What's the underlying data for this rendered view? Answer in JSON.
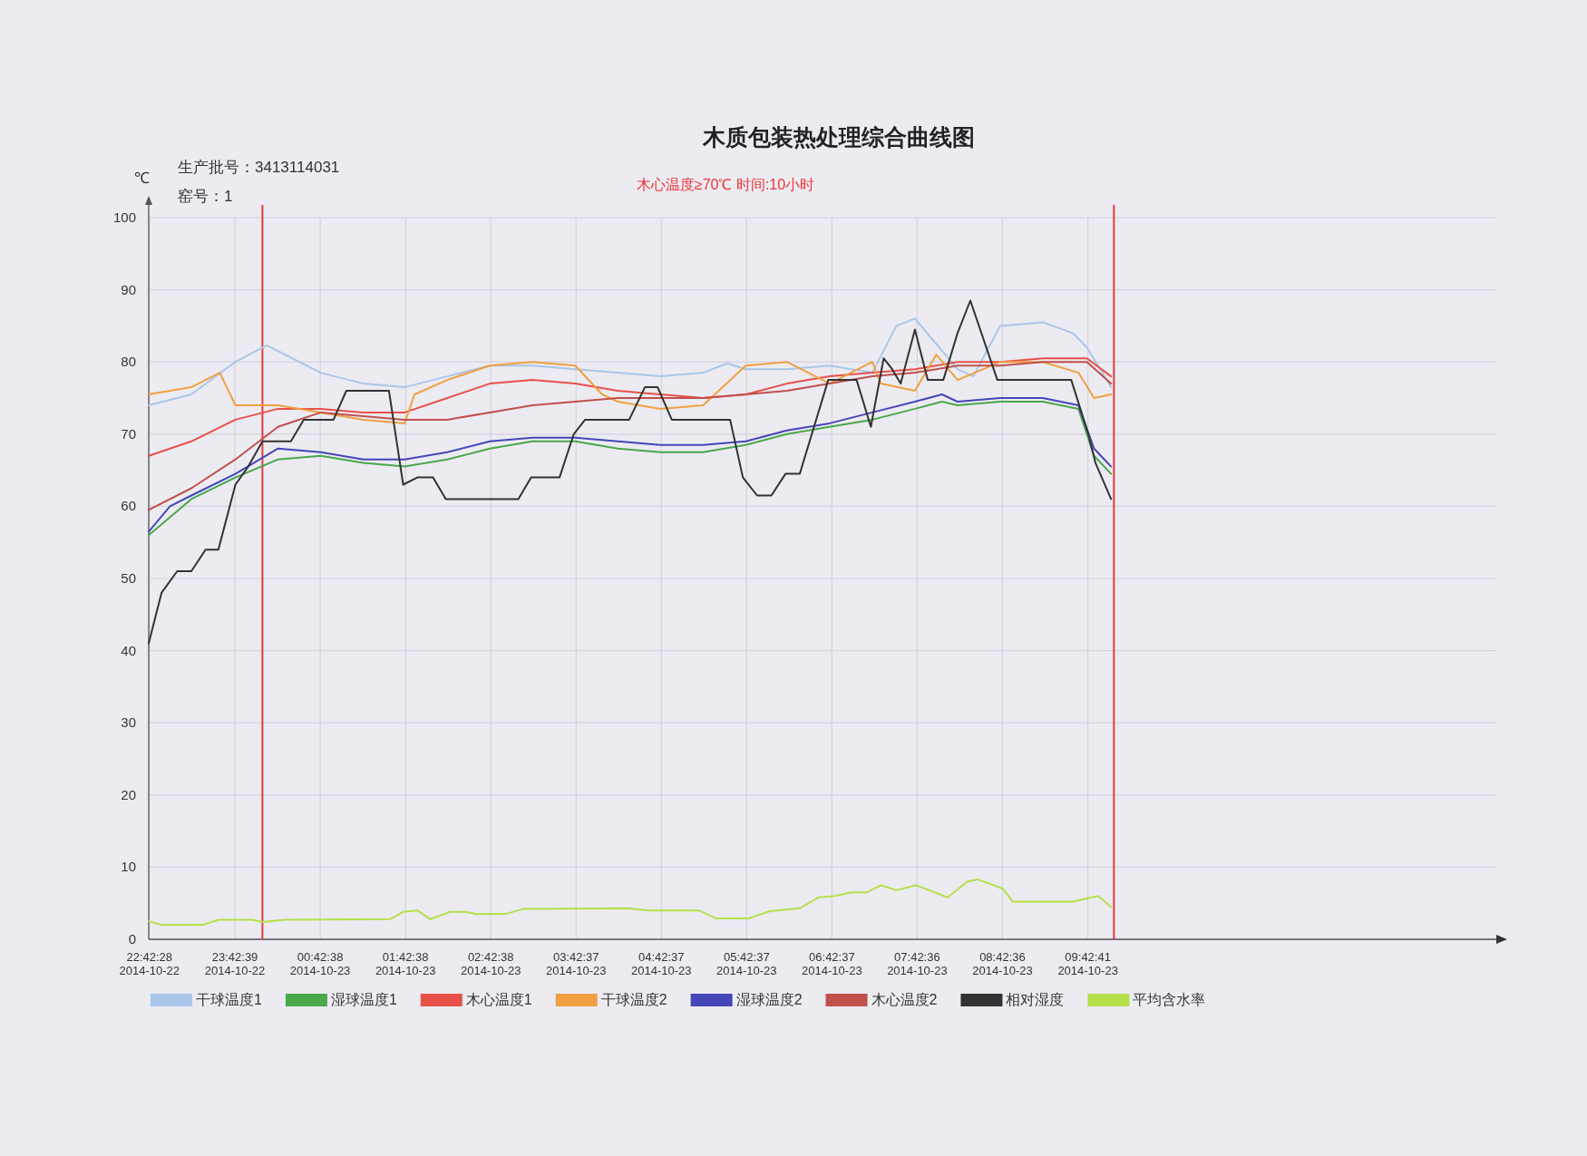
{
  "chart_data": {
    "type": "line",
    "title": "木质包装热处理综合曲线图",
    "subtitle": "木心温度≥70℃  时间:10小时",
    "ylabel": "℃",
    "annotations": [
      "生产批号：3413114031",
      "窑号：1"
    ],
    "xlim": [
      "2014-10-22T22:42",
      "2014-10-23T14:30"
    ],
    "ylim": [
      0,
      100
    ],
    "yticks": [
      0,
      10,
      20,
      30,
      40,
      50,
      60,
      70,
      80,
      90,
      100
    ],
    "xticks": [
      {
        "value": "2014-10-22T22:42:28",
        "label": "22:42:28 2014-10-22"
      },
      {
        "value": "2014-10-22T23:42:39",
        "label": "23:42:39 2014-10-22"
      },
      {
        "value": "2014-10-23T00:42:38",
        "label": "00:42:38 2014-10-23"
      },
      {
        "value": "2014-10-23T01:42:38",
        "label": "01:42:38 2014-10-23"
      },
      {
        "value": "2014-10-23T02:42:38",
        "label": "02:42:38 2014-10-23"
      },
      {
        "value": "2014-10-23T03:42:37",
        "label": "03:42:37 2014-10-23"
      },
      {
        "value": "2014-10-23T04:42:37",
        "label": "04:42:37 2014-10-23"
      },
      {
        "value": "2014-10-23T05:42:37",
        "label": "05:42:37 2014-10-23"
      },
      {
        "value": "2014-10-23T06:42:37",
        "label": "06:42:37 2014-10-23"
      },
      {
        "value": "2014-10-23T07:42:36",
        "label": "07:42:36 2014-10-23"
      },
      {
        "value": "2014-10-23T08:42:36",
        "label": "08:42:36 2014-10-23"
      },
      {
        "value": "2014-10-23T09:42:41",
        "label": "09:42:41 2014-10-23"
      }
    ],
    "grid": true,
    "legend": "bottom",
    "ref_lines": [
      {
        "axis": "x",
        "value": "2014-10-23T00:02",
        "color": "#e83c3c"
      },
      {
        "axis": "x",
        "value": "2014-10-23T10:01",
        "color": "#e83c3c"
      }
    ],
    "series": [
      {
        "name": "干球温度1",
        "color": "#a9c6ea",
        "x": [
          "2014-10-22T22:42",
          "2014-10-22T23:12",
          "2014-10-22T23:43",
          "2014-10-23T00:05",
          "2014-10-23T00:43",
          "2014-10-23T01:13",
          "2014-10-23T01:42",
          "2014-10-23T02:12",
          "2014-10-23T02:42",
          "2014-10-23T03:12",
          "2014-10-23T03:42",
          "2014-10-23T04:12",
          "2014-10-23T04:42",
          "2014-10-23T05:12",
          "2014-10-23T05:29",
          "2014-10-23T05:42",
          "2014-10-23T06:11",
          "2014-10-23T06:41",
          "2014-10-23T07:11",
          "2014-10-23T07:28",
          "2014-10-23T07:41",
          "2014-10-23T08:11",
          "2014-10-23T08:22",
          "2014-10-23T08:41",
          "2014-10-23T09:11",
          "2014-10-23T09:32",
          "2014-10-23T09:42",
          "2014-10-23T09:59"
        ],
        "values": [
          74,
          75.5,
          80,
          82.3,
          78.5,
          77,
          76.5,
          78,
          79.5,
          79.5,
          79,
          78.5,
          78,
          78.5,
          79.8,
          79,
          79,
          79.5,
          78.5,
          85,
          86,
          79,
          78,
          85,
          85.5,
          84,
          82,
          76.5
        ]
      },
      {
        "name": "湿球温度1",
        "color": "#4aa84a",
        "x": [
          "2014-10-22T22:42",
          "2014-10-22T23:12",
          "2014-10-22T23:43",
          "2014-10-23T00:13",
          "2014-10-23T00:43",
          "2014-10-23T01:13",
          "2014-10-23T01:42",
          "2014-10-23T02:12",
          "2014-10-23T02:42",
          "2014-10-23T03:12",
          "2014-10-23T03:42",
          "2014-10-23T04:12",
          "2014-10-23T04:42",
          "2014-10-23T05:12",
          "2014-10-23T05:42",
          "2014-10-23T06:11",
          "2014-10-23T06:41",
          "2014-10-23T07:11",
          "2014-10-23T07:41",
          "2014-10-23T08:00",
          "2014-10-23T08:11",
          "2014-10-23T08:41",
          "2014-10-23T09:11",
          "2014-10-23T09:36",
          "2014-10-23T09:47",
          "2014-10-23T09:59"
        ],
        "values": [
          56,
          61,
          64,
          66.5,
          67,
          66,
          65.5,
          66.5,
          68,
          69,
          69,
          68,
          67.5,
          67.5,
          68.5,
          70,
          71,
          72,
          73.5,
          74.5,
          74,
          74.5,
          74.5,
          73.5,
          67,
          64.5
        ]
      },
      {
        "name": "木心温度1",
        "color": "#e8504a",
        "x": [
          "2014-10-22T22:42",
          "2014-10-22T23:12",
          "2014-10-22T23:43",
          "2014-10-23T00:13",
          "2014-10-23T00:43",
          "2014-10-23T01:13",
          "2014-10-23T01:42",
          "2014-10-23T02:12",
          "2014-10-23T02:42",
          "2014-10-23T03:12",
          "2014-10-23T03:42",
          "2014-10-23T04:12",
          "2014-10-23T04:42",
          "2014-10-23T05:12",
          "2014-10-23T05:42",
          "2014-10-23T06:11",
          "2014-10-23T06:41",
          "2014-10-23T07:11",
          "2014-10-23T07:41",
          "2014-10-23T08:11",
          "2014-10-23T08:41",
          "2014-10-23T09:11",
          "2014-10-23T09:42",
          "2014-10-23T09:59"
        ],
        "values": [
          67,
          69,
          72,
          73.5,
          73.5,
          73,
          73,
          75,
          77,
          77.5,
          77,
          76,
          75.5,
          75,
          75.5,
          77,
          78,
          78.5,
          79,
          80,
          80,
          80.5,
          80.5,
          78
        ]
      },
      {
        "name": "干球温度2",
        "color": "#f0a040",
        "x": [
          "2014-10-22T22:42",
          "2014-10-22T23:12",
          "2014-10-22T23:32",
          "2014-10-22T23:43",
          "2014-10-23T00:13",
          "2014-10-23T00:43",
          "2014-10-23T01:13",
          "2014-10-23T01:42",
          "2014-10-23T01:49",
          "2014-10-23T02:12",
          "2014-10-23T02:42",
          "2014-10-23T03:12",
          "2014-10-23T03:42",
          "2014-10-23T04:01",
          "2014-10-23T04:12",
          "2014-10-23T04:42",
          "2014-10-23T05:12",
          "2014-10-23T05:42",
          "2014-10-23T06:11",
          "2014-10-23T06:41",
          "2014-10-23T07:11",
          "2014-10-23T07:17",
          "2014-10-23T07:41",
          "2014-10-23T07:56",
          "2014-10-23T08:11",
          "2014-10-23T08:41",
          "2014-10-23T09:11",
          "2014-10-23T09:36",
          "2014-10-23T09:47",
          "2014-10-23T09:59"
        ],
        "values": [
          75.5,
          76.5,
          78.5,
          74,
          74,
          73,
          72,
          71.5,
          75.5,
          77.5,
          79.5,
          80,
          79.5,
          75.5,
          74.5,
          73.5,
          74,
          79.5,
          80,
          77,
          80,
          77,
          76,
          81,
          77.5,
          80,
          80,
          78.5,
          75,
          75.5
        ]
      },
      {
        "name": "湿球温度2",
        "color": "#4646b8",
        "x": [
          "2014-10-22T22:42",
          "2014-10-22T22:57",
          "2014-10-22T23:12",
          "2014-10-22T23:43",
          "2014-10-23T00:13",
          "2014-10-23T00:43",
          "2014-10-23T01:13",
          "2014-10-23T01:42",
          "2014-10-23T02:12",
          "2014-10-23T02:42",
          "2014-10-23T03:12",
          "2014-10-23T03:42",
          "2014-10-23T04:12",
          "2014-10-23T04:42",
          "2014-10-23T05:12",
          "2014-10-23T05:42",
          "2014-10-23T06:11",
          "2014-10-23T06:41",
          "2014-10-23T07:11",
          "2014-10-23T07:41",
          "2014-10-23T08:00",
          "2014-10-23T08:11",
          "2014-10-23T08:41",
          "2014-10-23T09:11",
          "2014-10-23T09:36",
          "2014-10-23T09:47",
          "2014-10-23T09:59"
        ],
        "values": [
          56.5,
          60,
          61.5,
          64.5,
          68,
          67.5,
          66.5,
          66.5,
          67.5,
          69,
          69.5,
          69.5,
          69,
          68.5,
          68.5,
          69,
          70.5,
          71.5,
          73,
          74.5,
          75.5,
          74.5,
          75,
          75,
          74,
          68,
          65.5
        ]
      },
      {
        "name": "木心温度2",
        "color": "#c0504d",
        "x": [
          "2014-10-22T22:42",
          "2014-10-22T23:12",
          "2014-10-22T23:43",
          "2014-10-23T00:13",
          "2014-10-23T00:43",
          "2014-10-23T01:13",
          "2014-10-23T01:42",
          "2014-10-23T02:12",
          "2014-10-23T02:42",
          "2014-10-23T03:12",
          "2014-10-23T03:42",
          "2014-10-23T04:12",
          "2014-10-23T04:42",
          "2014-10-23T05:12",
          "2014-10-23T05:42",
          "2014-10-23T06:11",
          "2014-10-23T06:41",
          "2014-10-23T07:11",
          "2014-10-23T07:41",
          "2014-10-23T08:11",
          "2014-10-23T08:41",
          "2014-10-23T09:11",
          "2014-10-23T09:42",
          "2014-10-23T09:59"
        ],
        "values": [
          59.5,
          62.5,
          66.5,
          71,
          73,
          72.5,
          72,
          72,
          73,
          74,
          74.5,
          75,
          75,
          75,
          75.5,
          76,
          77,
          78,
          78.5,
          79.5,
          79.5,
          80,
          80,
          77
        ]
      },
      {
        "name": "相对湿度",
        "color": "#333333",
        "x": [
          "2014-10-22T22:42",
          "2014-10-22T22:51",
          "2014-10-22T23:02",
          "2014-10-22T23:12",
          "2014-10-22T23:22",
          "2014-10-22T23:31",
          "2014-10-22T23:43",
          "2014-10-22T23:52",
          "2014-10-23T00:02",
          "2014-10-23T00:22",
          "2014-10-23T00:31",
          "2014-10-23T00:52",
          "2014-10-23T01:01",
          "2014-10-23T01:31",
          "2014-10-23T01:41",
          "2014-10-23T01:51",
          "2014-10-23T02:02",
          "2014-10-23T02:11",
          "2014-10-23T03:02",
          "2014-10-23T03:11",
          "2014-10-23T03:31",
          "2014-10-23T03:41",
          "2014-10-23T03:49",
          "2014-10-23T04:20",
          "2014-10-23T04:31",
          "2014-10-23T04:40",
          "2014-10-23T04:50",
          "2014-10-23T05:31",
          "2014-10-23T05:40",
          "2014-10-23T05:50",
          "2014-10-23T06:00",
          "2014-10-23T06:10",
          "2014-10-23T06:20",
          "2014-10-23T06:40",
          "2014-10-23T07:00",
          "2014-10-23T07:10",
          "2014-10-23T07:19",
          "2014-10-23T07:25",
          "2014-10-23T07:31",
          "2014-10-23T07:41",
          "2014-10-23T07:50",
          "2014-10-23T08:01",
          "2014-10-23T08:11",
          "2014-10-23T08:20",
          "2014-10-23T08:39",
          "2014-10-23T09:31",
          "2014-10-23T09:43",
          "2014-10-23T09:48",
          "2014-10-23T09:59"
        ],
        "values": [
          41,
          48,
          51,
          51,
          54,
          54,
          63,
          65.5,
          69,
          69,
          72,
          72,
          76,
          76,
          63,
          64,
          64,
          61,
          61,
          64,
          64,
          70,
          72,
          72,
          76.5,
          76.5,
          72,
          72,
          64,
          61.5,
          61.5,
          64.5,
          64.5,
          77.5,
          77.5,
          71,
          80.5,
          79,
          77,
          84.5,
          77.5,
          77.5,
          84,
          88.5,
          77.5,
          77.5,
          70,
          66,
          61
        ]
      },
      {
        "name": "平均含水率",
        "color": "#b5e04a",
        "x": [
          "2014-10-22T22:42",
          "2014-10-22T22:51",
          "2014-10-22T23:20",
          "2014-10-22T23:31",
          "2014-10-22T23:55",
          "2014-10-23T00:02",
          "2014-10-23T00:17",
          "2014-10-23T01:32",
          "2014-10-23T01:41",
          "2014-10-23T01:51",
          "2014-10-23T02:00",
          "2014-10-23T02:14",
          "2014-10-23T02:25",
          "2014-10-23T02:32",
          "2014-10-23T02:53",
          "2014-10-23T03:05",
          "2014-10-23T04:19",
          "2014-10-23T04:34",
          "2014-10-23T05:09",
          "2014-10-23T05:21",
          "2014-10-23T05:44",
          "2014-10-23T05:59",
          "2014-10-23T06:20",
          "2014-10-23T06:33",
          "2014-10-23T06:45",
          "2014-10-23T06:56",
          "2014-10-23T07:07",
          "2014-10-23T07:17",
          "2014-10-23T07:28",
          "2014-10-23T07:42",
          "2014-10-23T08:04",
          "2014-10-23T08:18",
          "2014-10-23T08:25",
          "2014-10-23T08:43",
          "2014-10-23T08:50",
          "2014-10-23T09:32",
          "2014-10-23T09:50",
          "2014-10-23T09:59"
        ],
        "values": [
          2.5,
          2,
          2,
          2.7,
          2.7,
          2.4,
          2.7,
          2.8,
          3.8,
          4,
          2.8,
          3.8,
          3.8,
          3.5,
          3.5,
          4.2,
          4.3,
          4,
          4,
          2.9,
          2.9,
          3.9,
          4.3,
          5.8,
          6,
          6.5,
          6.5,
          7.5,
          6.8,
          7.5,
          5.8,
          8,
          8.3,
          7,
          5.2,
          5.2,
          6,
          4.5
        ]
      }
    ]
  }
}
